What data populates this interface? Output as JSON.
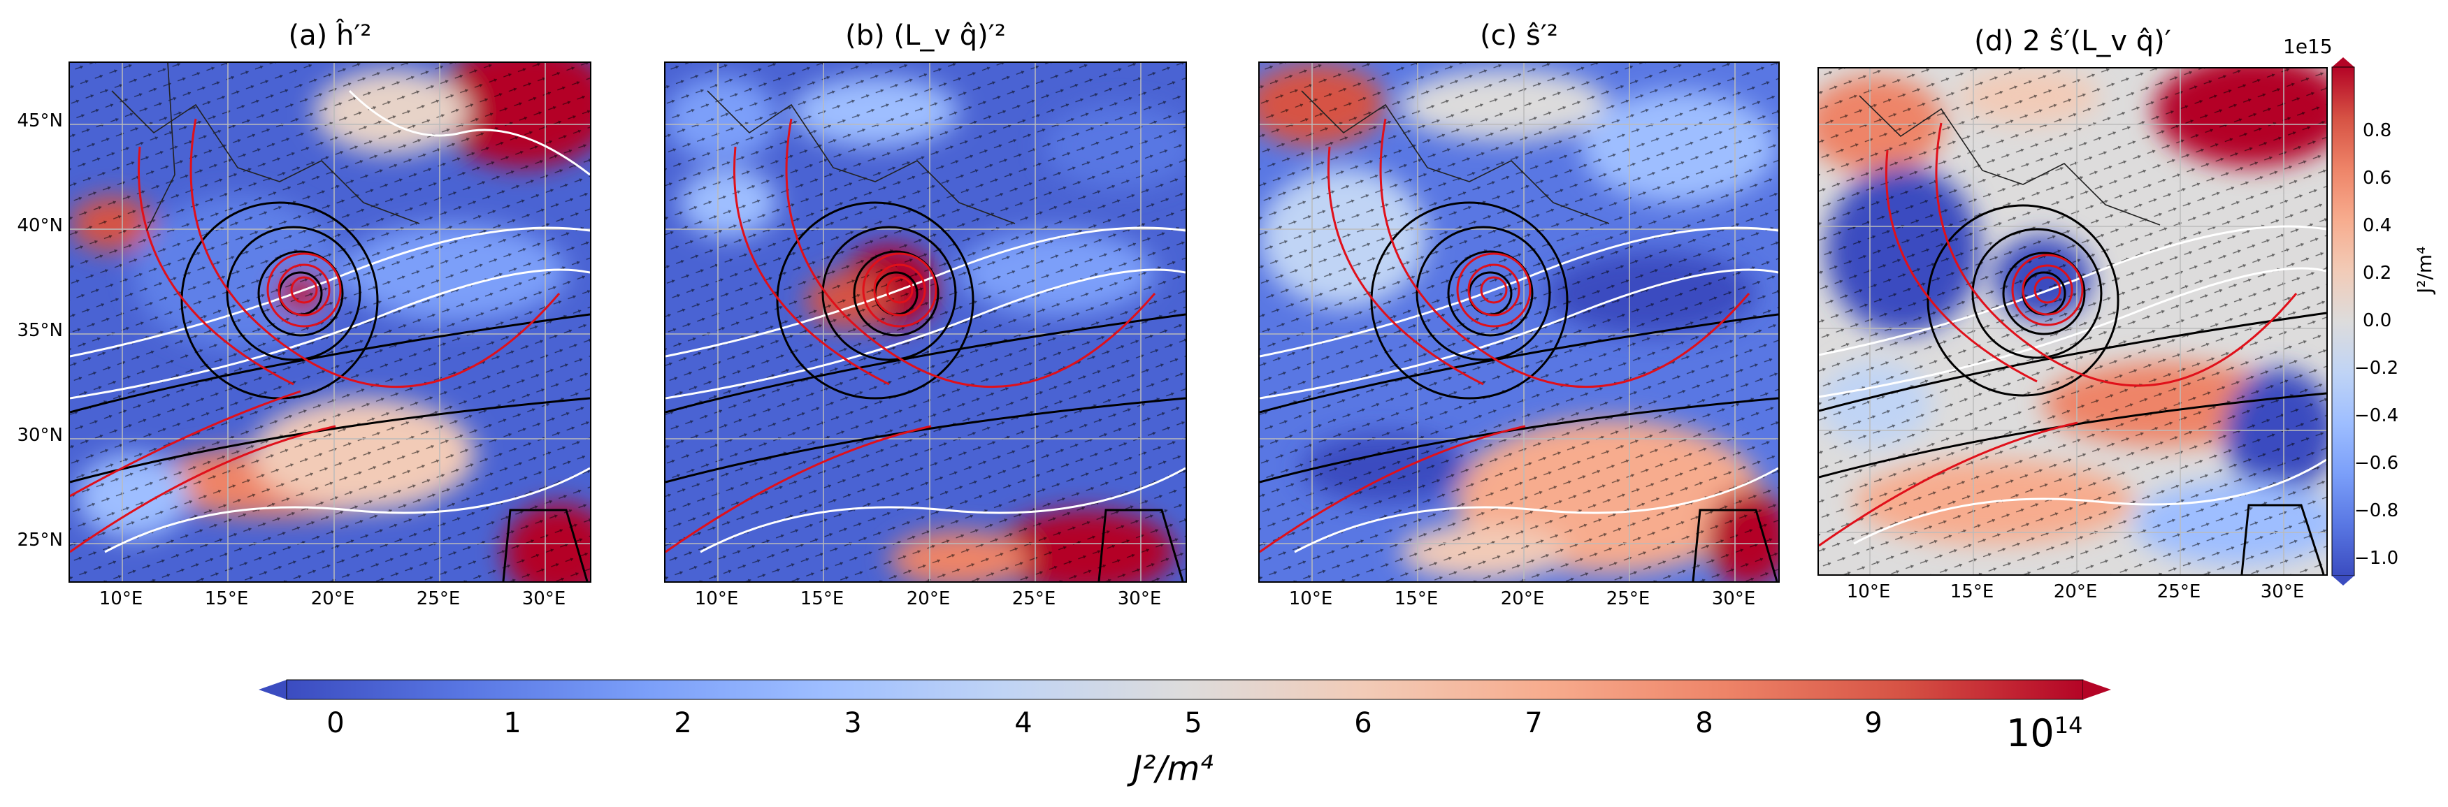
{
  "chart_data": [
    {
      "type": "heatmap",
      "title": "(a) ĥ′²",
      "lat_ticks": [
        "25°N",
        "30°N",
        "35°N",
        "40°N",
        "45°N"
      ],
      "lon_ticks": [
        "10°E",
        "15°E",
        "20°E",
        "25°E",
        "30°E"
      ],
      "lat_range": [
        23.5,
        48
      ],
      "lon_range": [
        7.5,
        32
      ],
      "cyclone_center": {
        "lon": 17.5,
        "lat": 37.0
      },
      "colormap": "coolwarm",
      "colorbar": "shared"
    },
    {
      "type": "heatmap",
      "title": "(b) (L_v q̂)′²",
      "lat_ticks": [],
      "lon_ticks": [
        "10°E",
        "15°E",
        "20°E",
        "25°E",
        "30°E"
      ],
      "lat_range": [
        23.5,
        48
      ],
      "lon_range": [
        7.5,
        32
      ],
      "cyclone_center": {
        "lon": 17.5,
        "lat": 37.0
      },
      "colormap": "coolwarm",
      "colorbar": "shared"
    },
    {
      "type": "heatmap",
      "title": "(c) ŝ′²",
      "lat_ticks": [],
      "lon_ticks": [
        "10°E",
        "15°E",
        "20°E",
        "25°E",
        "30°E"
      ],
      "lat_range": [
        23.5,
        48
      ],
      "lon_range": [
        7.5,
        32
      ],
      "cyclone_center": {
        "lon": 17.5,
        "lat": 37.0
      },
      "colormap": "coolwarm",
      "colorbar": "shared"
    },
    {
      "type": "heatmap",
      "title": "(d) 2 ŝ′(L_v q̂)′",
      "lat_ticks": [],
      "lon_ticks": [
        "10°E",
        "15°E",
        "20°E",
        "25°E",
        "30°E"
      ],
      "lat_range": [
        23.5,
        48
      ],
      "lon_range": [
        7.5,
        32
      ],
      "cyclone_center": {
        "lon": 17.5,
        "lat": 37.0
      },
      "colormap": "coolwarm",
      "colorbar": {
        "orientation": "vertical",
        "ticks": [
          "0.8",
          "0.6",
          "0.4",
          "0.2",
          "0.0",
          "−0.2",
          "−0.4",
          "−0.6",
          "−0.8",
          "−1.0"
        ],
        "range": [
          -1.0,
          1.0
        ],
        "multiplier": "1e15",
        "label": "J²/m⁴"
      }
    }
  ],
  "shared_colorbar": {
    "orientation": "horizontal",
    "ticks": [
      "0",
      "1",
      "2",
      "3",
      "4",
      "5",
      "6",
      "7",
      "8",
      "9"
    ],
    "range": [
      0,
      10
    ],
    "multiplier_base": "10",
    "multiplier_exp": "14",
    "label": "J²/m⁴",
    "colors": [
      "#3b4cc0",
      "#5977e3",
      "#7b9ff9",
      "#9ebeff",
      "#c0d4f5",
      "#dddcdc",
      "#f2cbb7",
      "#f7ac8e",
      "#ee8468",
      "#d65244",
      "#b40426"
    ]
  }
}
